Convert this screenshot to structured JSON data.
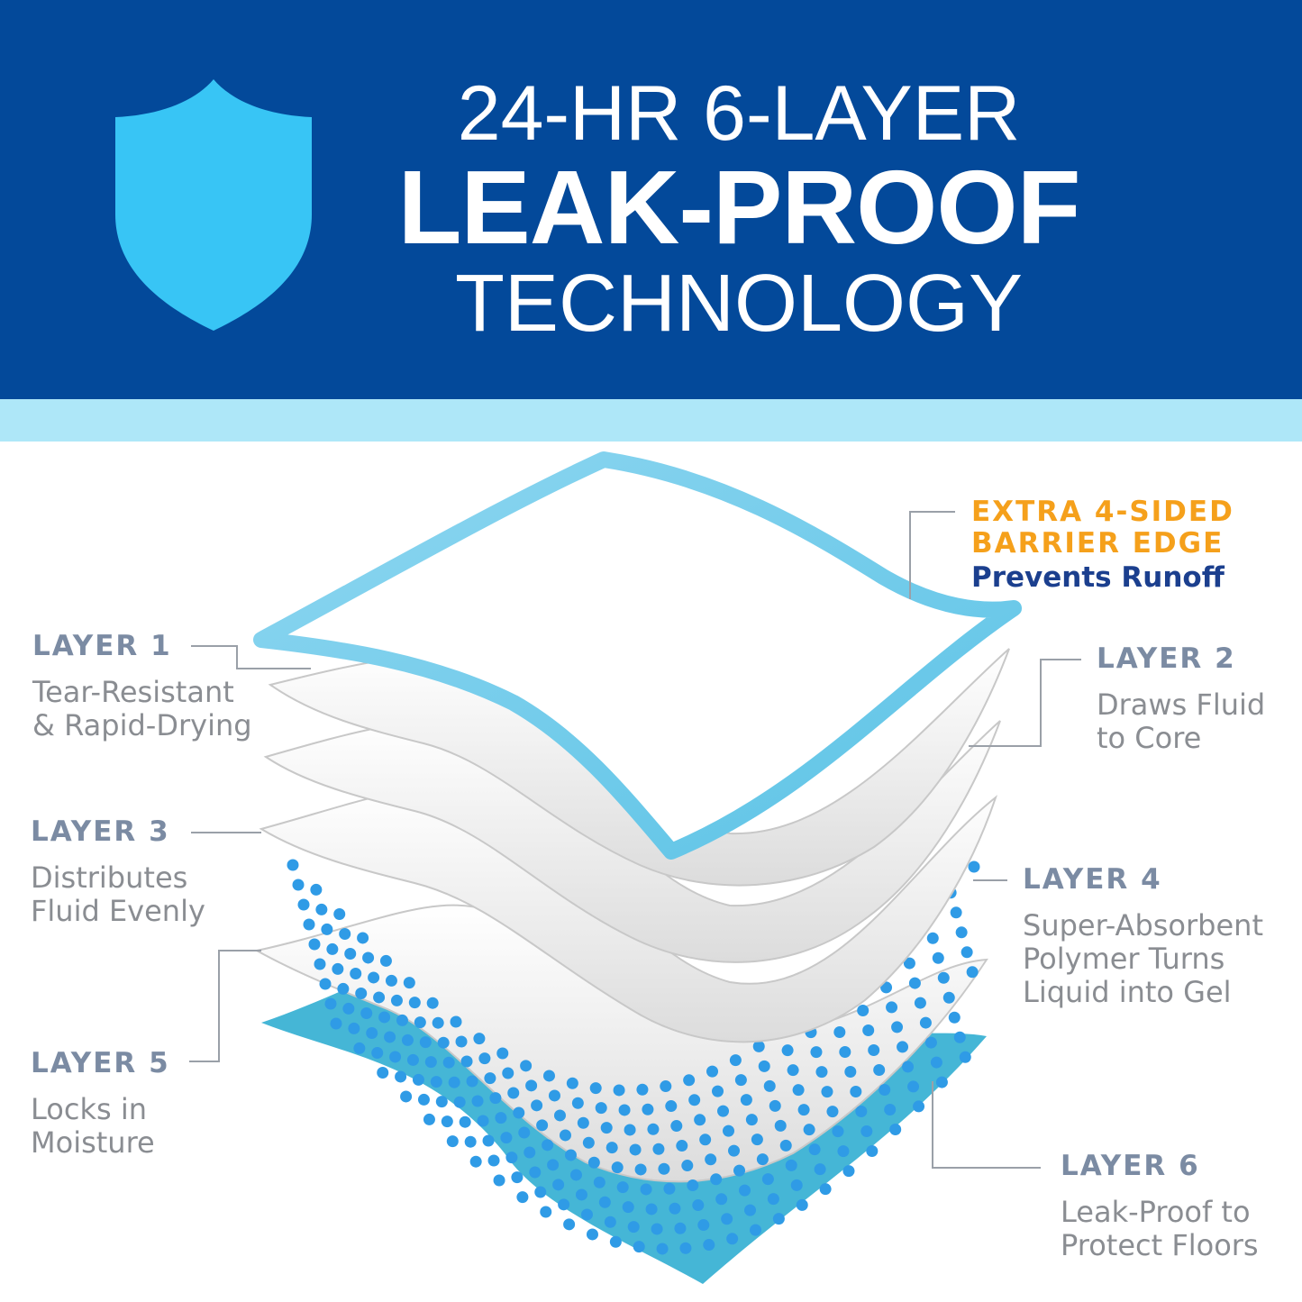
{
  "header": {
    "line1": "24-HR 6-LAYER",
    "line2": "LEAK-PROOF",
    "line3": "TECHNOLOGY",
    "icon": "shield-icon"
  },
  "barrier": {
    "line1": "EXTRA 4-SIDED",
    "line2": "BARRIER EDGE",
    "line3": "Prevents Runoff"
  },
  "layers": [
    {
      "title": "LAYER 1",
      "line1": "Tear-Resistant",
      "line2": "& Rapid-Drying"
    },
    {
      "title": "LAYER 2",
      "line1": "Draws Fluid",
      "line2": "to Core"
    },
    {
      "title": "LAYER 3",
      "line1": "Distributes",
      "line2": "Fluid Evenly"
    },
    {
      "title": "LAYER 4",
      "line1": "Super-Absorbent",
      "line2": "Polymer Turns",
      "line3": "Liquid into Gel"
    },
    {
      "title": "LAYER 5",
      "line1": "Locks in",
      "line2": "Moisture"
    },
    {
      "title": "LAYER 6",
      "line1": "Leak-Proof to",
      "line2": "Protect Floors"
    }
  ],
  "colors": {
    "header_blue": "#03499a",
    "band_blue": "#aee7f8",
    "shield": "#38c5f5",
    "barrier_orange": "#f5a01b",
    "navy": "#1b3f8e",
    "layer_label": "#7b8ba3",
    "bottom_layer": "#45b6d6"
  }
}
